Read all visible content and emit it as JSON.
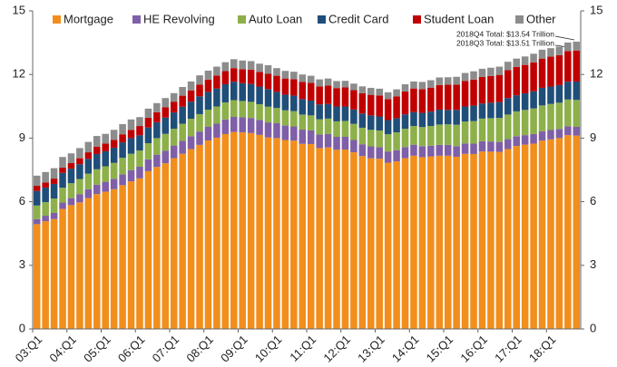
{
  "chart_data": {
    "type": "stacked_bar",
    "categories": [
      "03:Q1",
      null,
      null,
      null,
      "04:Q1",
      null,
      null,
      null,
      "05:Q1",
      null,
      null,
      null,
      "06:Q1",
      null,
      null,
      null,
      "07:Q1",
      null,
      null,
      null,
      "08:Q1",
      null,
      null,
      null,
      "09:Q1",
      null,
      null,
      null,
      "10:Q1",
      null,
      null,
      null,
      "11:Q1",
      null,
      null,
      null,
      "12:Q1",
      null,
      null,
      null,
      "13:Q1",
      null,
      null,
      null,
      "14:Q1",
      null,
      null,
      null,
      "15:Q1",
      null,
      null,
      null,
      "16:Q1",
      null,
      null,
      null,
      "17:Q1",
      null,
      null,
      null,
      "18:Q1",
      null,
      null,
      null
    ],
    "series": [
      {
        "name": "Mortgage",
        "color": "#f28e1c",
        "values": [
          4.94,
          5.08,
          5.18,
          5.66,
          5.84,
          5.97,
          6.17,
          6.36,
          6.47,
          6.59,
          6.78,
          6.96,
          7.1,
          7.44,
          7.64,
          7.81,
          8.05,
          8.26,
          8.48,
          8.68,
          8.89,
          9.02,
          9.19,
          9.29,
          9.27,
          9.24,
          9.15,
          9.03,
          9.0,
          8.91,
          8.88,
          8.73,
          8.72,
          8.53,
          8.56,
          8.45,
          8.46,
          8.33,
          8.15,
          8.05,
          8.03,
          7.84,
          7.9,
          8.05,
          8.17,
          8.1,
          8.13,
          8.17,
          8.17,
          8.12,
          8.26,
          8.25,
          8.37,
          8.36,
          8.35,
          8.48,
          8.63,
          8.69,
          8.74,
          8.88,
          8.94,
          9.0,
          9.14,
          9.12
        ]
      },
      {
        "name": "HE Revolving",
        "color": "#7f5fa8",
        "values": [
          0.24,
          0.26,
          0.29,
          0.3,
          0.33,
          0.38,
          0.42,
          0.44,
          0.47,
          0.49,
          0.51,
          0.53,
          0.55,
          0.56,
          0.58,
          0.6,
          0.6,
          0.61,
          0.61,
          0.63,
          0.64,
          0.66,
          0.69,
          0.71,
          0.71,
          0.71,
          0.71,
          0.71,
          0.7,
          0.68,
          0.67,
          0.67,
          0.64,
          0.64,
          0.63,
          0.61,
          0.6,
          0.58,
          0.56,
          0.56,
          0.54,
          0.53,
          0.53,
          0.53,
          0.52,
          0.52,
          0.51,
          0.51,
          0.51,
          0.5,
          0.49,
          0.49,
          0.48,
          0.48,
          0.47,
          0.47,
          0.46,
          0.45,
          0.45,
          0.44,
          0.44,
          0.43,
          0.42,
          0.41
        ]
      },
      {
        "name": "Auto Loan",
        "color": "#8db04a",
        "values": [
          0.64,
          0.64,
          0.68,
          0.7,
          0.7,
          0.72,
          0.73,
          0.73,
          0.73,
          0.75,
          0.78,
          0.77,
          0.76,
          0.76,
          0.78,
          0.79,
          0.79,
          0.81,
          0.82,
          0.82,
          0.81,
          0.81,
          0.8,
          0.79,
          0.77,
          0.76,
          0.74,
          0.74,
          0.72,
          0.72,
          0.72,
          0.71,
          0.71,
          0.72,
          0.73,
          0.73,
          0.75,
          0.76,
          0.78,
          0.78,
          0.79,
          0.81,
          0.84,
          0.86,
          0.88,
          0.9,
          0.93,
          0.96,
          0.97,
          1.01,
          1.03,
          1.06,
          1.07,
          1.1,
          1.13,
          1.16,
          1.17,
          1.19,
          1.21,
          1.22,
          1.23,
          1.24,
          1.26,
          1.27
        ]
      },
      {
        "name": "Credit Card",
        "color": "#1f4e79",
        "values": [
          0.69,
          0.69,
          0.69,
          0.7,
          0.69,
          0.7,
          0.7,
          0.72,
          0.71,
          0.72,
          0.73,
          0.74,
          0.72,
          0.74,
          0.75,
          0.77,
          0.77,
          0.8,
          0.81,
          0.84,
          0.84,
          0.85,
          0.86,
          0.87,
          0.84,
          0.84,
          0.83,
          0.83,
          0.76,
          0.74,
          0.73,
          0.73,
          0.7,
          0.7,
          0.69,
          0.7,
          0.68,
          0.68,
          0.67,
          0.68,
          0.66,
          0.67,
          0.67,
          0.68,
          0.66,
          0.67,
          0.68,
          0.7,
          0.68,
          0.7,
          0.71,
          0.73,
          0.71,
          0.73,
          0.75,
          0.78,
          0.76,
          0.78,
          0.81,
          0.83,
          0.82,
          0.83,
          0.84,
          0.87
        ]
      },
      {
        "name": "Student Loan",
        "color": "#c00000",
        "values": [
          0.24,
          0.24,
          0.25,
          0.25,
          0.26,
          0.28,
          0.31,
          0.35,
          0.36,
          0.37,
          0.38,
          0.39,
          0.44,
          0.46,
          0.47,
          0.48,
          0.51,
          0.52,
          0.53,
          0.55,
          0.58,
          0.61,
          0.62,
          0.64,
          0.66,
          0.68,
          0.69,
          0.72,
          0.76,
          0.76,
          0.78,
          0.81,
          0.84,
          0.85,
          0.87,
          0.87,
          0.9,
          0.91,
          0.96,
          0.97,
          0.99,
          0.99,
          1.03,
          1.08,
          1.11,
          1.12,
          1.13,
          1.16,
          1.19,
          1.19,
          1.2,
          1.23,
          1.26,
          1.26,
          1.28,
          1.31,
          1.34,
          1.34,
          1.36,
          1.38,
          1.41,
          1.41,
          1.44,
          1.46
        ]
      },
      {
        "name": "Other",
        "color": "#8c8c8c",
        "values": [
          0.48,
          0.49,
          0.49,
          0.5,
          0.46,
          0.48,
          0.49,
          0.5,
          0.46,
          0.47,
          0.48,
          0.49,
          0.42,
          0.43,
          0.43,
          0.44,
          0.4,
          0.41,
          0.42,
          0.44,
          0.42,
          0.42,
          0.42,
          0.42,
          0.41,
          0.4,
          0.39,
          0.41,
          0.36,
          0.36,
          0.35,
          0.35,
          0.33,
          0.33,
          0.33,
          0.33,
          0.31,
          0.31,
          0.32,
          0.33,
          0.32,
          0.32,
          0.33,
          0.34,
          0.33,
          0.34,
          0.35,
          0.36,
          0.35,
          0.37,
          0.38,
          0.39,
          0.38,
          0.39,
          0.39,
          0.4,
          0.39,
          0.4,
          0.41,
          0.42,
          0.4,
          0.4,
          0.41,
          0.42
        ]
      }
    ],
    "ylim": [
      0,
      15
    ],
    "yticks": [
      0,
      3,
      6,
      9,
      12,
      15
    ],
    "y2lim": [
      0,
      15
    ],
    "y2ticks": [
      0,
      3,
      6,
      9,
      12,
      15
    ],
    "annotations": [
      "2018Q4 Total: $13.54 Trillion",
      "2018Q3 Total: $13.51 Trillion"
    ],
    "legend": "top-left"
  }
}
